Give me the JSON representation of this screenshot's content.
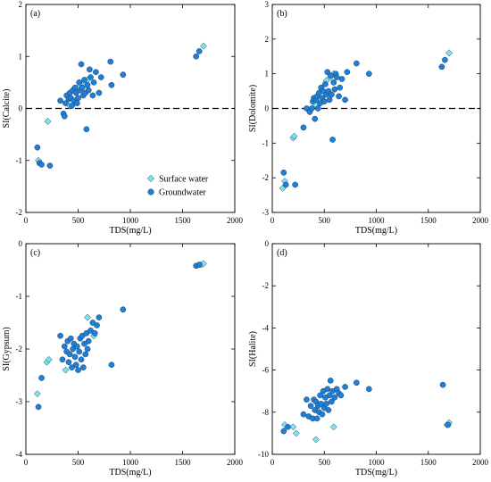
{
  "figure": {
    "panels": [
      "(a)",
      "(b)",
      "(c)",
      "(d)"
    ]
  },
  "colors": {
    "groundwater": "#1e7fd6",
    "surface_water": "#7fe3ea",
    "marker_edge": "#1a3d6e",
    "axis": "#000000"
  },
  "chart_data": [
    {
      "type": "scatter",
      "panel_label": "(a)",
      "xlabel": "TDS(mg/L)",
      "ylabel": "SI(Calcite)",
      "xlim": [
        0,
        2000
      ],
      "ylim": [
        -2,
        2
      ],
      "xticks": [
        0,
        500,
        1000,
        1500,
        2000
      ],
      "yticks": [
        -2,
        -1,
        0,
        1,
        2
      ],
      "reference_line": 0,
      "legend": {
        "position": "bottom-right",
        "entries": [
          "Surface water",
          "Groundwater"
        ]
      },
      "series": [
        {
          "name": "Surface water",
          "marker": "diamond",
          "x": [
            120,
            210,
            420,
            520,
            560,
            590,
            1700
          ],
          "y": [
            -1.0,
            -0.25,
            0.05,
            0.45,
            0.52,
            0.55,
            1.2
          ]
        },
        {
          "name": "Groundwater",
          "marker": "circle",
          "x": [
            110,
            130,
            150,
            230,
            330,
            360,
            370,
            380,
            390,
            410,
            420,
            430,
            440,
            450,
            460,
            470,
            480,
            490,
            500,
            510,
            520,
            530,
            540,
            550,
            560,
            570,
            580,
            590,
            600,
            610,
            620,
            640,
            650,
            670,
            700,
            720,
            810,
            820,
            930,
            1630,
            1660
          ],
          "y": [
            -0.75,
            -1.05,
            -1.08,
            -1.1,
            0.15,
            -0.1,
            -0.15,
            0.1,
            0.25,
            0.18,
            0.3,
            0.2,
            0.05,
            0.35,
            0.15,
            0.4,
            0.3,
            0.1,
            0.2,
            0.5,
            0.35,
            0.85,
            0.4,
            0.25,
            0.55,
            0.3,
            -0.4,
            0.45,
            0.35,
            0.75,
            0.6,
            0.25,
            0.5,
            0.7,
            0.3,
            0.6,
            0.9,
            0.45,
            0.65,
            1.0,
            1.1
          ]
        }
      ]
    },
    {
      "type": "scatter",
      "panel_label": "(b)",
      "xlabel": "TDS(mg/L)",
      "ylabel": "SI(Dolomite)",
      "xlim": [
        0,
        2000
      ],
      "ylim": [
        -3,
        3
      ],
      "xticks": [
        0,
        500,
        1000,
        1500,
        2000
      ],
      "yticks": [
        -3,
        -2,
        -1,
        0,
        1,
        2,
        3
      ],
      "reference_line": 0,
      "series": [
        {
          "name": "Surface water",
          "marker": "diamond",
          "x": [
            100,
            120,
            200,
            210,
            420,
            520,
            560,
            590,
            1700
          ],
          "y": [
            -2.3,
            -2.1,
            -0.85,
            -0.8,
            0.1,
            0.8,
            0.9,
            1.0,
            1.6
          ]
        },
        {
          "name": "Groundwater",
          "marker": "circle",
          "x": [
            110,
            130,
            220,
            300,
            330,
            360,
            380,
            390,
            400,
            410,
            420,
            430,
            440,
            450,
            460,
            470,
            480,
            490,
            500,
            510,
            520,
            530,
            540,
            550,
            560,
            570,
            580,
            590,
            600,
            610,
            620,
            640,
            650,
            670,
            700,
            720,
            810,
            930,
            1630,
            1660
          ],
          "y": [
            -1.85,
            -2.2,
            -2.2,
            -0.55,
            0.0,
            -0.1,
            0.0,
            0.2,
            0.3,
            -0.3,
            0.25,
            0.35,
            0.0,
            0.45,
            0.15,
            0.6,
            0.3,
            0.5,
            0.2,
            0.7,
            0.4,
            1.05,
            0.5,
            0.25,
            0.95,
            0.4,
            -0.9,
            0.75,
            0.55,
            1.0,
            0.9,
            0.35,
            0.6,
            0.85,
            0.25,
            1.05,
            1.3,
            1.0,
            1.2,
            1.4
          ]
        }
      ]
    },
    {
      "type": "scatter",
      "panel_label": "(c)",
      "xlabel": "TDS(mg/L)",
      "ylabel": "SI(Gypsum)",
      "xlim": [
        0,
        2000
      ],
      "ylim": [
        -4,
        0
      ],
      "xticks": [
        0,
        500,
        1000,
        1500,
        2000
      ],
      "yticks": [
        -4,
        -3,
        -2,
        -1,
        0
      ],
      "series": [
        {
          "name": "Surface water",
          "marker": "diamond",
          "x": [
            110,
            200,
            220,
            380,
            590,
            650,
            1680,
            1700
          ],
          "y": [
            -2.85,
            -2.25,
            -2.2,
            -2.4,
            -1.4,
            -1.75,
            -0.4,
            -0.38
          ]
        },
        {
          "name": "Groundwater",
          "marker": "circle",
          "x": [
            120,
            150,
            330,
            350,
            370,
            390,
            400,
            410,
            420,
            430,
            440,
            450,
            460,
            470,
            480,
            490,
            500,
            510,
            520,
            530,
            540,
            550,
            560,
            570,
            580,
            590,
            600,
            620,
            640,
            660,
            680,
            700,
            820,
            930,
            1630,
            1660
          ],
          "y": [
            -3.1,
            -2.55,
            -1.75,
            -2.2,
            -1.95,
            -2.05,
            -1.85,
            -2.25,
            -2.1,
            -1.8,
            -2.35,
            -2.0,
            -1.9,
            -2.15,
            -2.3,
            -1.95,
            -2.4,
            -2.05,
            -1.8,
            -2.2,
            -1.75,
            -2.35,
            -1.9,
            -2.1,
            -1.7,
            -2.0,
            -1.85,
            -1.65,
            -1.5,
            -1.7,
            -1.55,
            -1.4,
            -2.3,
            -1.25,
            -0.42,
            -0.4
          ]
        }
      ]
    },
    {
      "type": "scatter",
      "panel_label": "(d)",
      "xlabel": "TDS(mg/L)",
      "ylabel": "SI(Halite)",
      "xlim": [
        0,
        2000
      ],
      "ylim": [
        -10,
        0
      ],
      "xticks": [
        0,
        500,
        1000,
        1500,
        2000
      ],
      "yticks": [
        -10,
        -8,
        -6,
        -4,
        -2,
        0
      ],
      "series": [
        {
          "name": "Surface water",
          "marker": "diamond",
          "x": [
            120,
            200,
            230,
            420,
            590,
            1680,
            1700
          ],
          "y": [
            -8.6,
            -8.7,
            -9.0,
            -9.3,
            -8.7,
            -8.6,
            -8.5
          ]
        },
        {
          "name": "Groundwater",
          "marker": "circle",
          "x": [
            110,
            150,
            300,
            330,
            350,
            370,
            390,
            400,
            410,
            420,
            430,
            440,
            450,
            460,
            470,
            480,
            490,
            500,
            510,
            520,
            530,
            540,
            550,
            560,
            570,
            580,
            600,
            620,
            640,
            660,
            700,
            810,
            930,
            1640,
            1690
          ],
          "y": [
            -8.9,
            -8.7,
            -8.1,
            -7.4,
            -8.2,
            -7.7,
            -8.3,
            -7.4,
            -7.9,
            -7.5,
            -8.3,
            -7.7,
            -8.0,
            -7.2,
            -7.6,
            -8.1,
            -7.0,
            -7.8,
            -7.3,
            -7.6,
            -6.9,
            -7.9,
            -7.2,
            -6.5,
            -7.5,
            -7.0,
            -7.3,
            -6.9,
            -7.1,
            -7.2,
            -6.8,
            -6.6,
            -6.9,
            -6.7,
            -8.6
          ]
        }
      ]
    }
  ]
}
